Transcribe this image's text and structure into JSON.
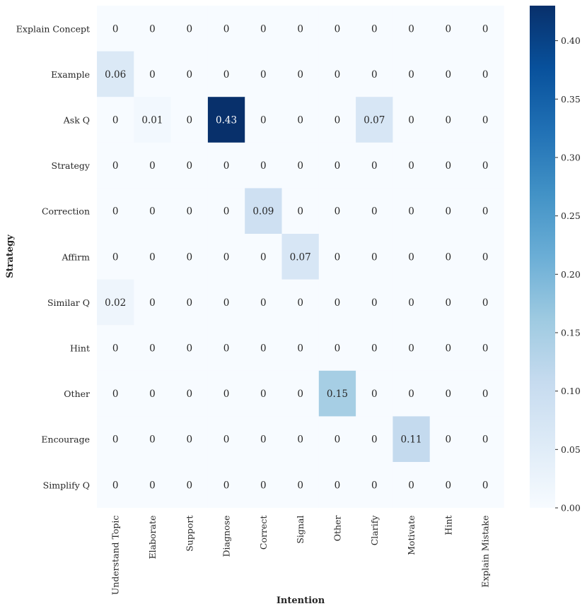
{
  "chart_data": {
    "type": "heatmap",
    "title": "",
    "xlabel": "Intention",
    "ylabel": "Strategy",
    "x_categories": [
      "Understand Topic",
      "Elaborate",
      "Support",
      "Diagnose",
      "Correct",
      "Signal",
      "Other",
      "Clarify",
      "Motivate",
      "Hint",
      "Explain Mistake"
    ],
    "y_categories": [
      "Explain Concept",
      "Example",
      "Ask Q",
      "Strategy",
      "Correction",
      "Affirm",
      "Similar Q",
      "Hint",
      "Other",
      "Encourage",
      "Simplify Q"
    ],
    "values": [
      [
        0,
        0,
        0,
        0,
        0,
        0,
        0,
        0,
        0,
        0,
        0
      ],
      [
        0.06,
        0,
        0,
        0,
        0,
        0,
        0,
        0,
        0,
        0,
        0
      ],
      [
        0,
        0.01,
        0,
        0.43,
        0,
        0,
        0,
        0.07,
        0,
        0,
        0
      ],
      [
        0,
        0,
        0,
        0,
        0,
        0,
        0,
        0,
        0,
        0,
        0
      ],
      [
        0,
        0,
        0,
        0,
        0.09,
        0,
        0,
        0,
        0,
        0,
        0
      ],
      [
        0,
        0,
        0,
        0,
        0,
        0.07,
        0,
        0,
        0,
        0,
        0
      ],
      [
        0.02,
        0,
        0,
        0,
        0,
        0,
        0,
        0,
        0,
        0,
        0
      ],
      [
        0,
        0,
        0,
        0,
        0,
        0,
        0,
        0,
        0,
        0,
        0
      ],
      [
        0,
        0,
        0,
        0,
        0,
        0,
        0.15,
        0,
        0,
        0,
        0
      ],
      [
        0,
        0,
        0,
        0,
        0,
        0,
        0,
        0,
        0.11,
        0,
        0
      ],
      [
        0,
        0,
        0,
        0,
        0,
        0,
        0,
        0,
        0,
        0,
        0
      ]
    ],
    "colorbar": {
      "range": [
        0,
        0.43
      ],
      "ticks": [
        0.0,
        0.05,
        0.1,
        0.15,
        0.2,
        0.25,
        0.3,
        0.35,
        0.4
      ],
      "tick_labels": [
        "0.00",
        "0.05",
        "0.10",
        "0.15",
        "0.20",
        "0.25",
        "0.30",
        "0.35",
        "0.40"
      ]
    },
    "colormap": "Blues",
    "colors": {
      "low": "#f7fbff",
      "high": "#08306b",
      "annotation_dark": "#262626",
      "annotation_light": "#ffffff",
      "background": "#ffffff"
    }
  }
}
